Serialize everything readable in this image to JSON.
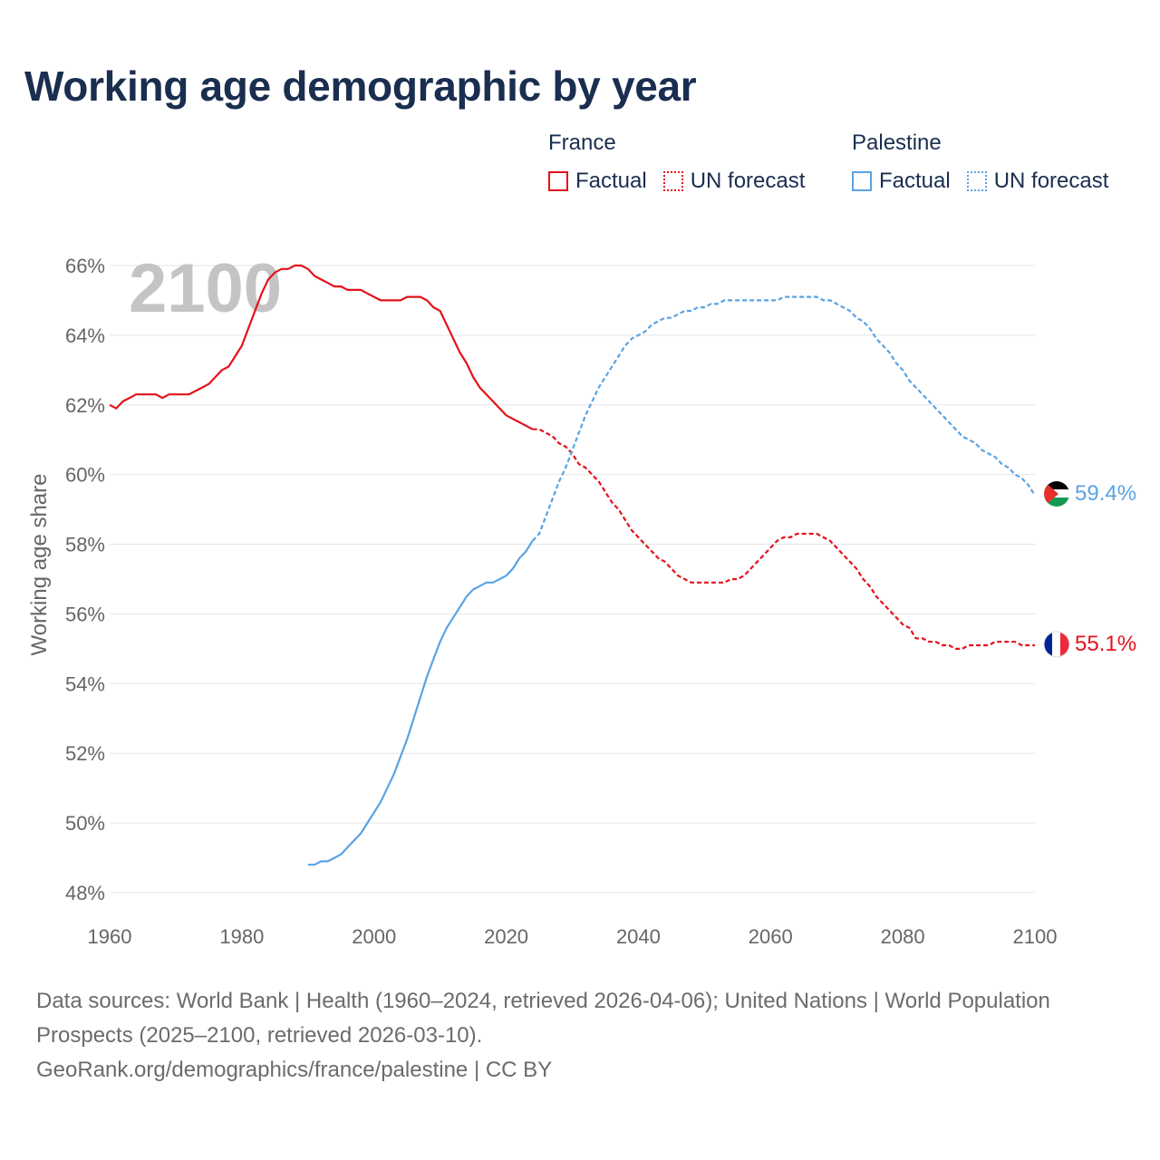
{
  "title": "Working age demographic by year",
  "legend": {
    "groups": [
      {
        "name": "France",
        "color": "#e3121b",
        "factual_label": "Factual",
        "forecast_label": "UN forecast"
      },
      {
        "name": "Palestine",
        "color": "#5aa3e3",
        "factual_label": "Factual",
        "forecast_label": "UN forecast"
      }
    ]
  },
  "year_watermark": "2100",
  "footer": {
    "line1": "Data sources: World Bank | Health (1960–2024, retrieved 2026-04-06); United Nations | World Population Prospects (2025–2100, retrieved 2026-03-10).",
    "line2": "GeoRank.org/demographics/france/palestine | CC BY"
  },
  "chart_data": {
    "type": "line",
    "title": "Working age demographic by year",
    "xlabel": "",
    "ylabel": "Working age share",
    "xlim": [
      1960,
      2100
    ],
    "ylim": [
      48,
      66
    ],
    "x_ticks": [
      1960,
      1980,
      2000,
      2020,
      2040,
      2060,
      2080,
      2100
    ],
    "x_tick_labels": [
      "1960",
      "1980",
      "2000",
      "2020",
      "2040",
      "2060",
      "2080",
      "2100"
    ],
    "y_ticks": [
      48,
      50,
      52,
      54,
      56,
      58,
      60,
      62,
      64,
      66
    ],
    "y_tick_labels": [
      "48%",
      "50%",
      "52%",
      "54%",
      "56%",
      "58%",
      "60%",
      "62%",
      "64%",
      "66%"
    ],
    "grid": true,
    "series": [
      {
        "name": "France",
        "color": "#e3121b",
        "end_label": "55.1%",
        "flag": "france-flag",
        "factual": [
          [
            1960,
            62.0
          ],
          [
            1961,
            61.9
          ],
          [
            1962,
            62.1
          ],
          [
            1963,
            62.2
          ],
          [
            1964,
            62.3
          ],
          [
            1965,
            62.3
          ],
          [
            1966,
            62.3
          ],
          [
            1967,
            62.3
          ],
          [
            1968,
            62.2
          ],
          [
            1969,
            62.3
          ],
          [
            1970,
            62.3
          ],
          [
            1971,
            62.3
          ],
          [
            1972,
            62.3
          ],
          [
            1973,
            62.4
          ],
          [
            1974,
            62.5
          ],
          [
            1975,
            62.6
          ],
          [
            1976,
            62.8
          ],
          [
            1977,
            63.0
          ],
          [
            1978,
            63.1
          ],
          [
            1979,
            63.4
          ],
          [
            1980,
            63.7
          ],
          [
            1981,
            64.2
          ],
          [
            1982,
            64.7
          ],
          [
            1983,
            65.2
          ],
          [
            1984,
            65.6
          ],
          [
            1985,
            65.8
          ],
          [
            1986,
            65.9
          ],
          [
            1987,
            65.9
          ],
          [
            1988,
            66.0
          ],
          [
            1989,
            66.0
          ],
          [
            1990,
            65.9
          ],
          [
            1991,
            65.7
          ],
          [
            1992,
            65.6
          ],
          [
            1993,
            65.5
          ],
          [
            1994,
            65.4
          ],
          [
            1995,
            65.4
          ],
          [
            1996,
            65.3
          ],
          [
            1997,
            65.3
          ],
          [
            1998,
            65.3
          ],
          [
            1999,
            65.2
          ],
          [
            2000,
            65.1
          ],
          [
            2001,
            65.0
          ],
          [
            2002,
            65.0
          ],
          [
            2003,
            65.0
          ],
          [
            2004,
            65.0
          ],
          [
            2005,
            65.1
          ],
          [
            2006,
            65.1
          ],
          [
            2007,
            65.1
          ],
          [
            2008,
            65.0
          ],
          [
            2009,
            64.8
          ],
          [
            2010,
            64.7
          ],
          [
            2011,
            64.3
          ],
          [
            2012,
            63.9
          ],
          [
            2013,
            63.5
          ],
          [
            2014,
            63.2
          ],
          [
            2015,
            62.8
          ],
          [
            2016,
            62.5
          ],
          [
            2017,
            62.3
          ],
          [
            2018,
            62.1
          ],
          [
            2019,
            61.9
          ],
          [
            2020,
            61.7
          ],
          [
            2021,
            61.6
          ],
          [
            2022,
            61.5
          ],
          [
            2023,
            61.4
          ],
          [
            2024,
            61.3
          ]
        ],
        "forecast": [
          [
            2024,
            61.3
          ],
          [
            2025,
            61.3
          ],
          [
            2026,
            61.2
          ],
          [
            2027,
            61.1
          ],
          [
            2028,
            60.9
          ],
          [
            2029,
            60.8
          ],
          [
            2030,
            60.6
          ],
          [
            2031,
            60.3
          ],
          [
            2032,
            60.2
          ],
          [
            2033,
            60.0
          ],
          [
            2034,
            59.8
          ],
          [
            2035,
            59.5
          ],
          [
            2036,
            59.2
          ],
          [
            2037,
            59.0
          ],
          [
            2038,
            58.7
          ],
          [
            2039,
            58.4
          ],
          [
            2040,
            58.2
          ],
          [
            2041,
            58.0
          ],
          [
            2042,
            57.8
          ],
          [
            2043,
            57.6
          ],
          [
            2044,
            57.5
          ],
          [
            2045,
            57.3
          ],
          [
            2046,
            57.1
          ],
          [
            2047,
            57.0
          ],
          [
            2048,
            56.9
          ],
          [
            2049,
            56.9
          ],
          [
            2050,
            56.9
          ],
          [
            2051,
            56.9
          ],
          [
            2052,
            56.9
          ],
          [
            2053,
            56.9
          ],
          [
            2054,
            57.0
          ],
          [
            2055,
            57.0
          ],
          [
            2056,
            57.1
          ],
          [
            2057,
            57.3
          ],
          [
            2058,
            57.5
          ],
          [
            2059,
            57.7
          ],
          [
            2060,
            57.9
          ],
          [
            2061,
            58.1
          ],
          [
            2062,
            58.2
          ],
          [
            2063,
            58.2
          ],
          [
            2064,
            58.3
          ],
          [
            2065,
            58.3
          ],
          [
            2066,
            58.3
          ],
          [
            2067,
            58.3
          ],
          [
            2068,
            58.2
          ],
          [
            2069,
            58.1
          ],
          [
            2070,
            57.9
          ],
          [
            2071,
            57.7
          ],
          [
            2072,
            57.5
          ],
          [
            2073,
            57.3
          ],
          [
            2074,
            57.0
          ],
          [
            2075,
            56.8
          ],
          [
            2076,
            56.5
          ],
          [
            2077,
            56.3
          ],
          [
            2078,
            56.1
          ],
          [
            2079,
            55.9
          ],
          [
            2080,
            55.7
          ],
          [
            2081,
            55.6
          ],
          [
            2082,
            55.3
          ],
          [
            2083,
            55.3
          ],
          [
            2084,
            55.2
          ],
          [
            2085,
            55.2
          ],
          [
            2086,
            55.1
          ],
          [
            2087,
            55.1
          ],
          [
            2088,
            55.0
          ],
          [
            2089,
            55.0
          ],
          [
            2090,
            55.1
          ],
          [
            2091,
            55.1
          ],
          [
            2092,
            55.1
          ],
          [
            2093,
            55.1
          ],
          [
            2094,
            55.2
          ],
          [
            2095,
            55.2
          ],
          [
            2096,
            55.2
          ],
          [
            2097,
            55.2
          ],
          [
            2098,
            55.1
          ],
          [
            2099,
            55.1
          ],
          [
            2100,
            55.1
          ]
        ]
      },
      {
        "name": "Palestine",
        "color": "#5aa3e3",
        "end_label": "59.4%",
        "flag": "palestine-flag",
        "factual": [
          [
            1990,
            48.8
          ],
          [
            1991,
            48.8
          ],
          [
            1992,
            48.9
          ],
          [
            1993,
            48.9
          ],
          [
            1994,
            49.0
          ],
          [
            1995,
            49.1
          ],
          [
            1996,
            49.3
          ],
          [
            1997,
            49.5
          ],
          [
            1998,
            49.7
          ],
          [
            1999,
            50.0
          ],
          [
            2000,
            50.3
          ],
          [
            2001,
            50.6
          ],
          [
            2002,
            51.0
          ],
          [
            2003,
            51.4
          ],
          [
            2004,
            51.9
          ],
          [
            2005,
            52.4
          ],
          [
            2006,
            53.0
          ],
          [
            2007,
            53.6
          ],
          [
            2008,
            54.2
          ],
          [
            2009,
            54.7
          ],
          [
            2010,
            55.2
          ],
          [
            2011,
            55.6
          ],
          [
            2012,
            55.9
          ],
          [
            2013,
            56.2
          ],
          [
            2014,
            56.5
          ],
          [
            2015,
            56.7
          ],
          [
            2016,
            56.8
          ],
          [
            2017,
            56.9
          ],
          [
            2018,
            56.9
          ],
          [
            2019,
            57.0
          ],
          [
            2020,
            57.1
          ],
          [
            2021,
            57.3
          ],
          [
            2022,
            57.6
          ],
          [
            2023,
            57.8
          ],
          [
            2024,
            58.1
          ]
        ],
        "forecast": [
          [
            2024,
            58.1
          ],
          [
            2025,
            58.3
          ],
          [
            2026,
            58.8
          ],
          [
            2027,
            59.3
          ],
          [
            2028,
            59.8
          ],
          [
            2029,
            60.2
          ],
          [
            2030,
            60.7
          ],
          [
            2031,
            61.2
          ],
          [
            2032,
            61.7
          ],
          [
            2033,
            62.1
          ],
          [
            2034,
            62.5
          ],
          [
            2035,
            62.8
          ],
          [
            2036,
            63.1
          ],
          [
            2037,
            63.4
          ],
          [
            2038,
            63.7
          ],
          [
            2039,
            63.9
          ],
          [
            2040,
            64.0
          ],
          [
            2041,
            64.1
          ],
          [
            2042,
            64.3
          ],
          [
            2043,
            64.4
          ],
          [
            2044,
            64.5
          ],
          [
            2045,
            64.5
          ],
          [
            2046,
            64.6
          ],
          [
            2047,
            64.7
          ],
          [
            2048,
            64.7
          ],
          [
            2049,
            64.8
          ],
          [
            2050,
            64.8
          ],
          [
            2051,
            64.9
          ],
          [
            2052,
            64.9
          ],
          [
            2053,
            65.0
          ],
          [
            2054,
            65.0
          ],
          [
            2055,
            65.0
          ],
          [
            2056,
            65.0
          ],
          [
            2057,
            65.0
          ],
          [
            2058,
            65.0
          ],
          [
            2059,
            65.0
          ],
          [
            2060,
            65.0
          ],
          [
            2061,
            65.0
          ],
          [
            2062,
            65.1
          ],
          [
            2063,
            65.1
          ],
          [
            2064,
            65.1
          ],
          [
            2065,
            65.1
          ],
          [
            2066,
            65.1
          ],
          [
            2067,
            65.1
          ],
          [
            2068,
            65.0
          ],
          [
            2069,
            65.0
          ],
          [
            2070,
            64.9
          ],
          [
            2071,
            64.8
          ],
          [
            2072,
            64.7
          ],
          [
            2073,
            64.5
          ],
          [
            2074,
            64.4
          ],
          [
            2075,
            64.2
          ],
          [
            2076,
            63.9
          ],
          [
            2077,
            63.7
          ],
          [
            2078,
            63.5
          ],
          [
            2079,
            63.2
          ],
          [
            2080,
            63.0
          ],
          [
            2081,
            62.7
          ],
          [
            2082,
            62.5
          ],
          [
            2083,
            62.3
          ],
          [
            2084,
            62.1
          ],
          [
            2085,
            61.9
          ],
          [
            2086,
            61.7
          ],
          [
            2087,
            61.5
          ],
          [
            2088,
            61.3
          ],
          [
            2089,
            61.1
          ],
          [
            2090,
            61.0
          ],
          [
            2091,
            60.9
          ],
          [
            2092,
            60.7
          ],
          [
            2093,
            60.6
          ],
          [
            2094,
            60.5
          ],
          [
            2095,
            60.3
          ],
          [
            2096,
            60.2
          ],
          [
            2097,
            60.0
          ],
          [
            2098,
            59.9
          ],
          [
            2099,
            59.7
          ],
          [
            2100,
            59.4
          ]
        ]
      }
    ]
  }
}
